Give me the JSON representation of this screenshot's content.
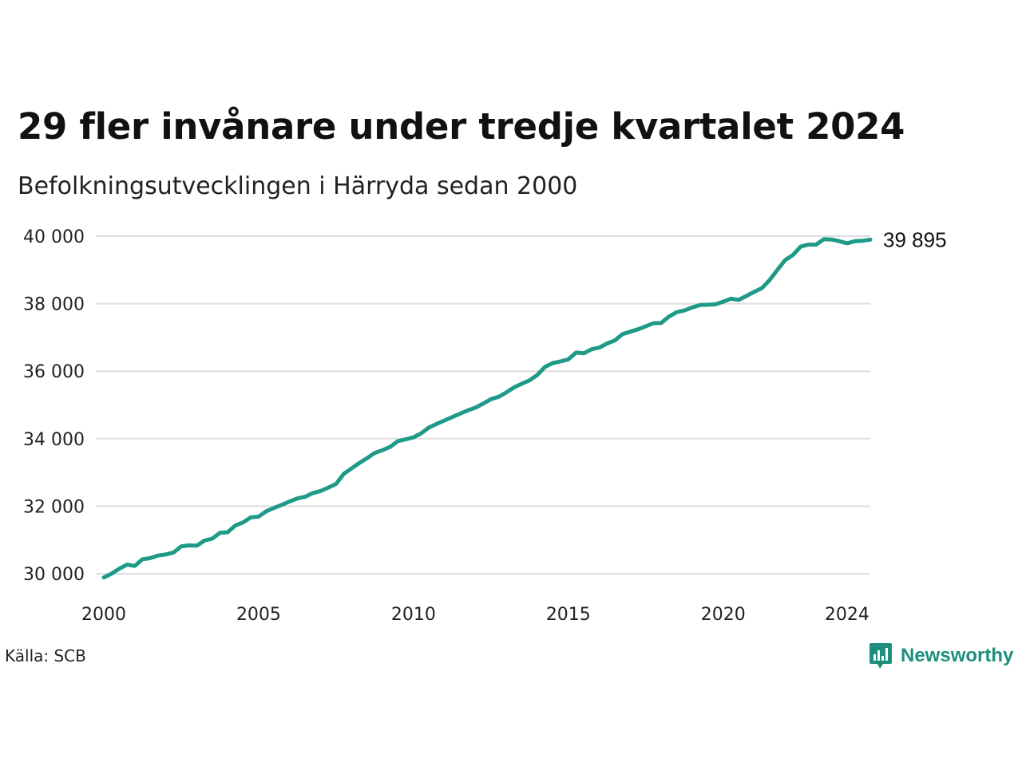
{
  "header": {
    "title": "29 fler invånare under tredje kvartalet 2024",
    "subtitle": "Befolkningsutvecklingen i Härryda sedan 2000"
  },
  "footer": {
    "source": "Källa: SCB",
    "brand": "Newsworthy",
    "brand_icon": "newsworthy-logo-icon"
  },
  "colors": {
    "line": "#1e9a87",
    "grid": "#dddde3",
    "brand": "#1e8f7e"
  },
  "chart_data": {
    "type": "line",
    "title": "29 fler invånare under tredje kvartalet 2024",
    "subtitle": "Befolkningsutvecklingen i Härryda sedan 2000",
    "xlabel": "",
    "ylabel": "",
    "xlim": [
      2000,
      2024.75
    ],
    "ylim": [
      30000,
      40000
    ],
    "x_ticks": [
      2000,
      2005,
      2010,
      2015,
      2020,
      2024
    ],
    "y_ticks": [
      {
        "value": 30000,
        "label": "30 000"
      },
      {
        "value": 32000,
        "label": "32 000"
      },
      {
        "value": 34000,
        "label": "34 000"
      },
      {
        "value": 36000,
        "label": "36 000"
      },
      {
        "value": 38000,
        "label": "38 000"
      },
      {
        "value": 40000,
        "label": "40 000"
      }
    ],
    "grid": true,
    "end_label": "39 895",
    "series": [
      {
        "x": [
          2000.0,
          2000.25,
          2000.5,
          2000.75,
          2001.0,
          2001.25,
          2001.5,
          2001.75,
          2002.0,
          2002.25,
          2002.5,
          2002.75,
          2003.0,
          2003.25,
          2003.5,
          2003.75,
          2004.0,
          2004.25,
          2004.5,
          2004.75,
          2005.0,
          2005.25,
          2005.5,
          2005.75,
          2006.0,
          2006.25,
          2006.5,
          2006.75,
          2007.0,
          2007.25,
          2007.5,
          2007.75,
          2008.0,
          2008.25,
          2008.5,
          2008.75,
          2009.0,
          2009.25,
          2009.5,
          2009.75,
          2010.0,
          2010.25,
          2010.5,
          2010.75,
          2011.0,
          2011.25,
          2011.5,
          2011.75,
          2012.0,
          2012.25,
          2012.5,
          2012.75,
          2013.0,
          2013.25,
          2013.5,
          2013.75,
          2014.0,
          2014.25,
          2014.5,
          2014.75,
          2015.0,
          2015.25,
          2015.5,
          2015.75,
          2016.0,
          2016.25,
          2016.5,
          2016.75,
          2017.0,
          2017.25,
          2017.5,
          2017.75,
          2018.0,
          2018.25,
          2018.5,
          2018.75,
          2019.0,
          2019.25,
          2019.5,
          2019.75,
          2020.0,
          2020.25,
          2020.5,
          2020.75,
          2021.0,
          2021.25,
          2021.5,
          2021.75,
          2022.0,
          2022.25,
          2022.5,
          2022.75,
          2023.0,
          2023.25,
          2023.5,
          2023.75,
          2024.0,
          2024.25,
          2024.5,
          2024.75
        ],
        "values": [
          29890,
          30000,
          30150,
          30270,
          30230,
          30430,
          30460,
          30540,
          30570,
          30630,
          30810,
          30840,
          30830,
          30980,
          31040,
          31210,
          31230,
          31430,
          31520,
          31670,
          31690,
          31850,
          31950,
          32040,
          32140,
          32230,
          32280,
          32390,
          32450,
          32550,
          32660,
          32960,
          33120,
          33280,
          33420,
          33580,
          33660,
          33760,
          33930,
          33980,
          34040,
          34160,
          34330,
          34440,
          34540,
          34640,
          34740,
          34840,
          34920,
          35040,
          35170,
          35240,
          35370,
          35520,
          35630,
          35730,
          35890,
          36130,
          36240,
          36290,
          36350,
          36550,
          36530,
          36650,
          36700,
          36820,
          36910,
          37100,
          37170,
          37240,
          37330,
          37420,
          37430,
          37620,
          37750,
          37800,
          37890,
          37960,
          37970,
          37980,
          38060,
          38150,
          38110,
          38230,
          38350,
          38460,
          38700,
          39000,
          39290,
          39440,
          39690,
          39750,
          39750,
          39910,
          39900,
          39850,
          39790,
          39850,
          39866,
          39895
        ]
      }
    ]
  }
}
